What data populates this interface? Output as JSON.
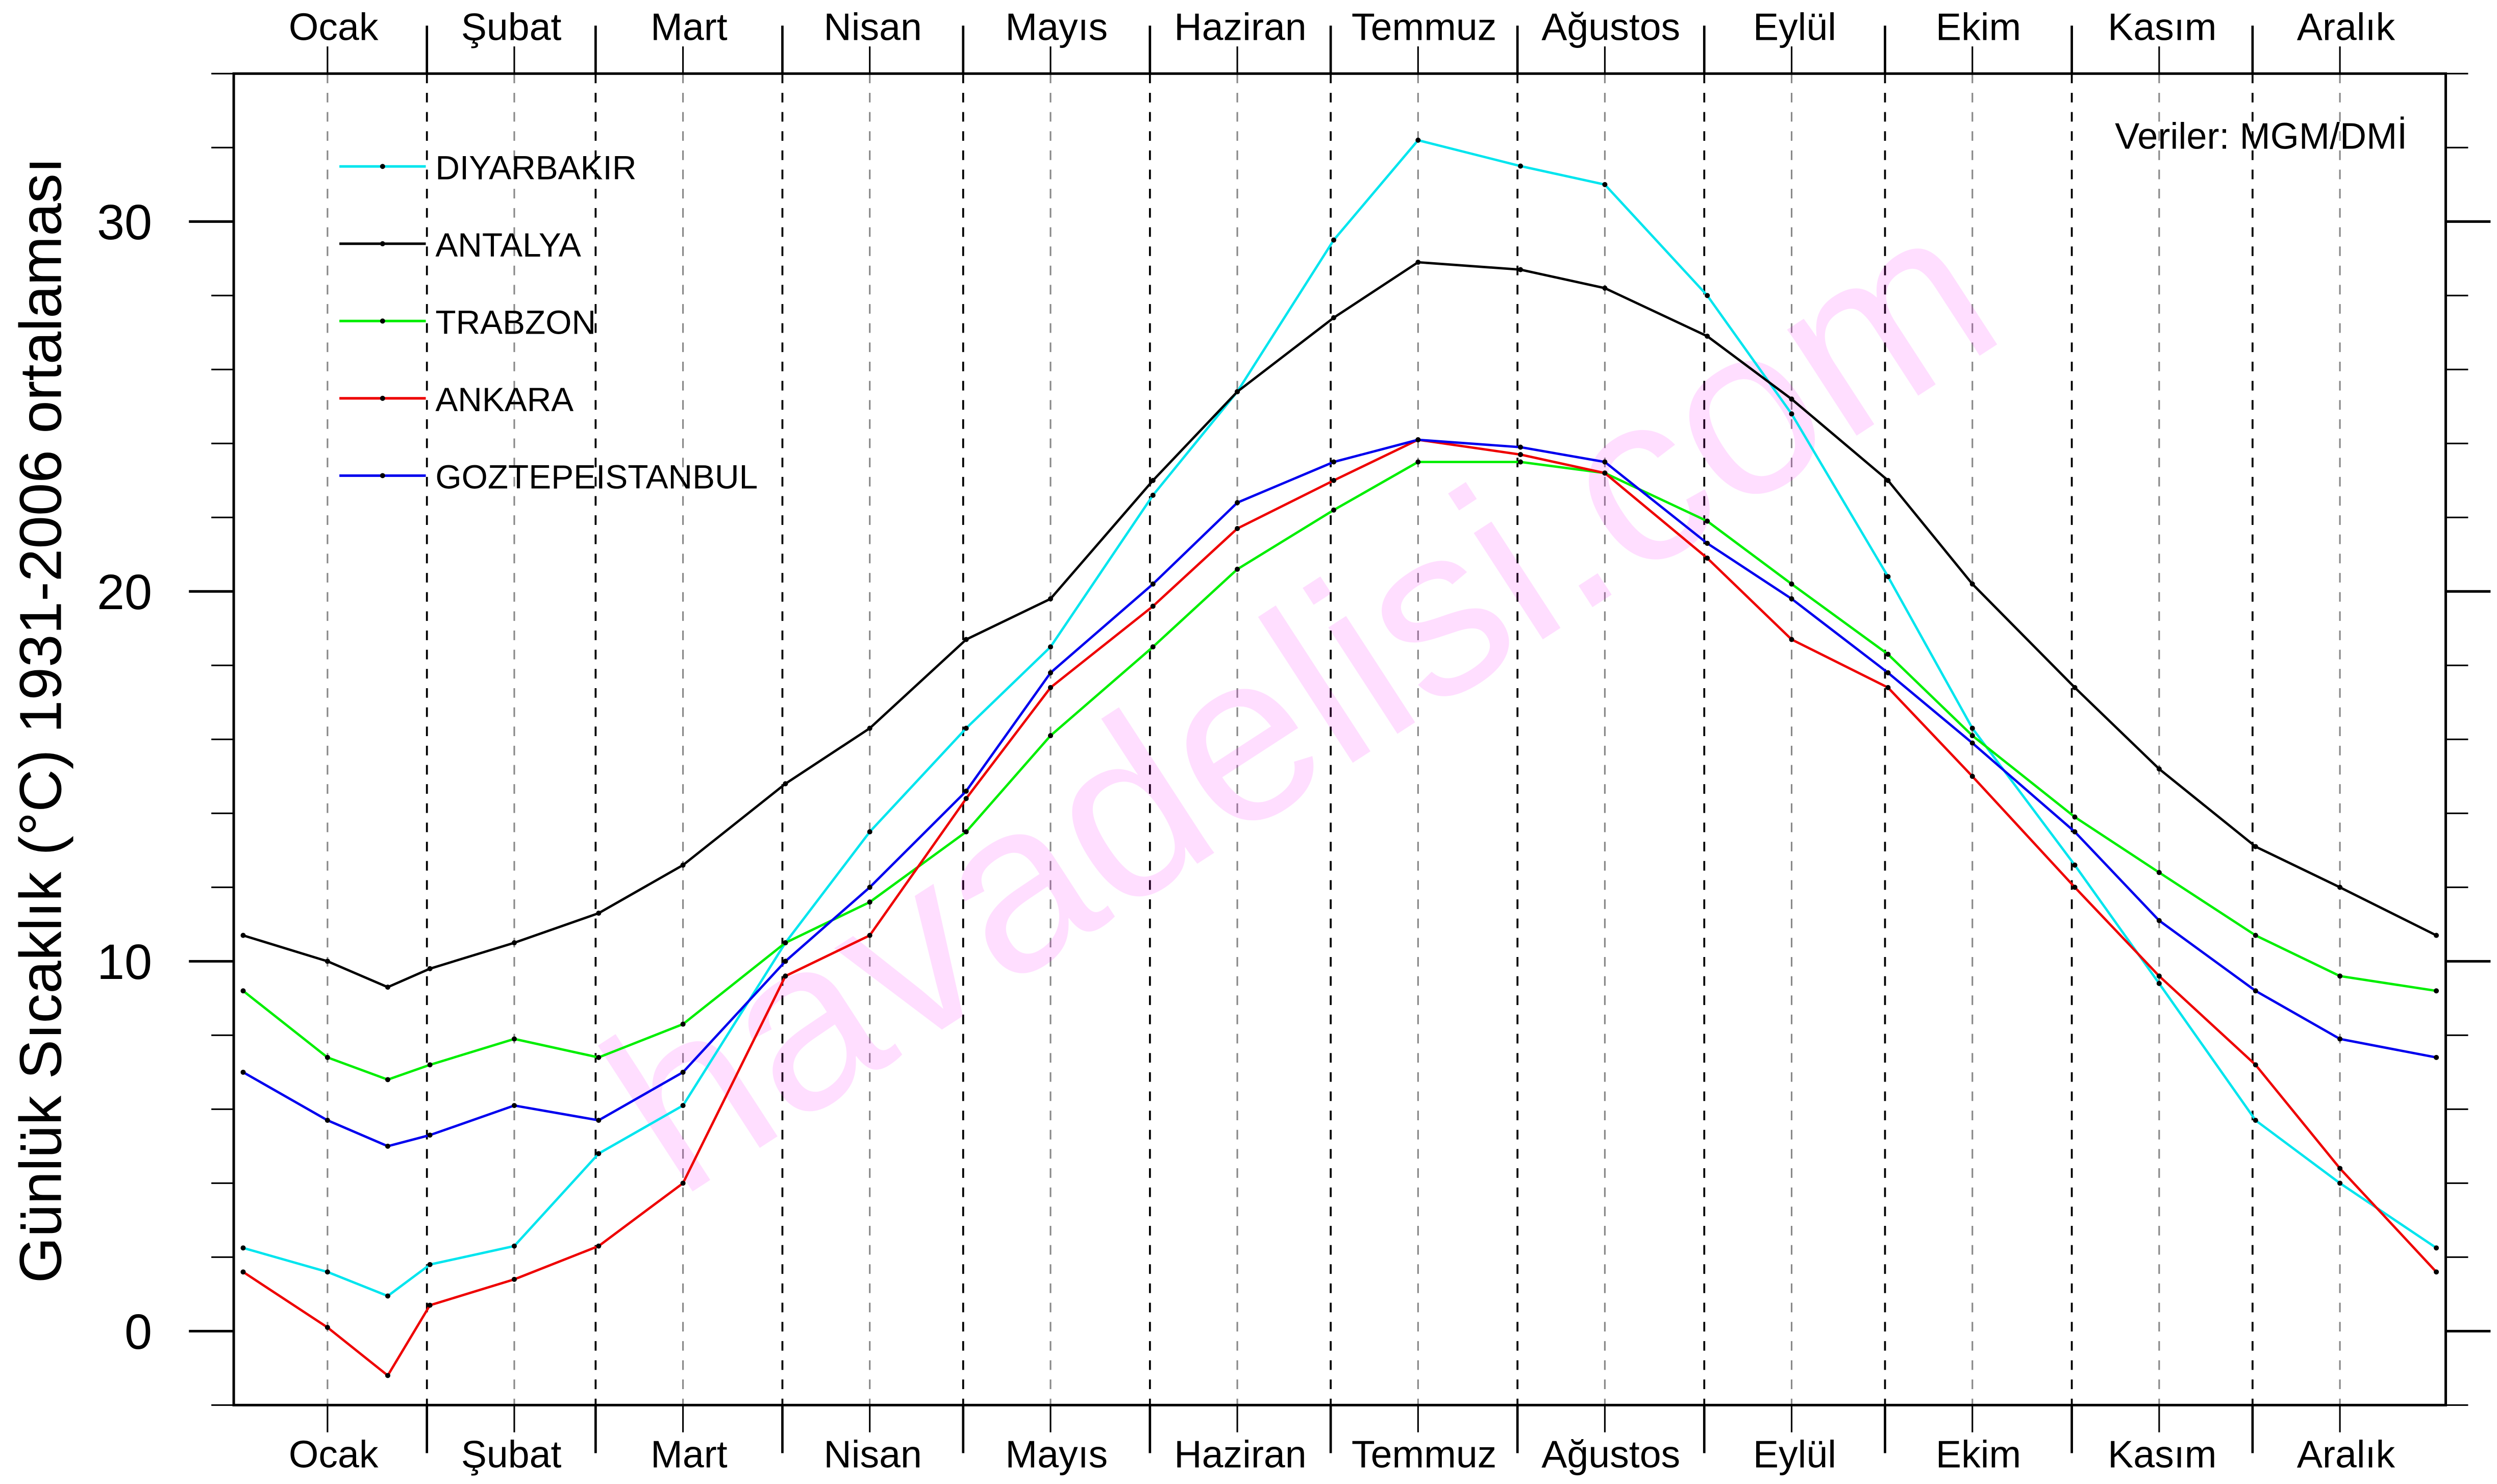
{
  "chart_data": {
    "type": "line",
    "title": "",
    "ylabel": "Günlük Sıcaklık (°C) 1931-2006 ortalaması",
    "xlabel": "",
    "ylim": [
      -2,
      34
    ],
    "yticks": [
      0,
      10,
      20,
      30
    ],
    "ytick_labels": [
      "0",
      "10",
      "20",
      "30"
    ],
    "months": [
      "Ocak",
      "Şubat",
      "Mart",
      "Nisan",
      "Mayıs",
      "Haziran",
      "Temmuz",
      "Ağustos",
      "Eylül",
      "Ekim",
      "Kasım",
      "Aralık"
    ],
    "month_days": [
      31,
      28,
      31,
      30,
      31,
      30,
      31,
      31,
      30,
      31,
      30,
      31
    ],
    "annotation": "Veriler: MGM/DMİ",
    "watermark": "havadelisi.com",
    "legend_position": "top-left",
    "x_day_of_year": [
      1,
      15,
      25,
      32,
      46,
      60,
      74,
      91,
      105,
      121,
      135,
      152,
      166,
      182,
      196,
      213,
      227,
      244,
      258,
      274,
      288,
      305,
      319,
      335,
      349,
      365
    ],
    "series": [
      {
        "name": "DIYARBAKIR",
        "color": "#00e5ee",
        "values": [
          2.25,
          1.6,
          0.95,
          1.8,
          2.3,
          4.8,
          6.1,
          10.5,
          13.5,
          16.3,
          18.5,
          22.6,
          25.4,
          29.5,
          32.2,
          31.5,
          31.0,
          28.0,
          24.8,
          20.4,
          16.3,
          12.6,
          9.4,
          5.7,
          4.0,
          2.25
        ]
      },
      {
        "name": "ANTALYA",
        "color": "#000000",
        "values": [
          10.7,
          10.0,
          9.3,
          9.8,
          10.5,
          11.3,
          12.6,
          14.8,
          16.3,
          18.7,
          19.8,
          23.0,
          25.4,
          27.4,
          28.9,
          28.7,
          28.2,
          26.9,
          25.2,
          23.0,
          20.2,
          17.4,
          15.2,
          13.1,
          12.0,
          10.7
        ]
      },
      {
        "name": "TRABZON",
        "color": "#00ee00",
        "values": [
          9.2,
          7.4,
          6.8,
          7.2,
          7.9,
          7.4,
          8.3,
          10.5,
          11.6,
          13.5,
          16.1,
          18.5,
          20.6,
          22.2,
          23.5,
          23.5,
          23.2,
          21.9,
          20.2,
          18.3,
          16.1,
          13.9,
          12.4,
          10.7,
          9.6,
          9.2
        ]
      },
      {
        "name": "ANKARA",
        "color": "#ee0000",
        "values": [
          1.6,
          0.1,
          -1.2,
          0.7,
          1.4,
          2.3,
          4.0,
          9.6,
          10.7,
          14.4,
          17.4,
          19.6,
          21.7,
          23.0,
          24.1,
          23.7,
          23.2,
          20.9,
          18.7,
          17.4,
          15.0,
          12.0,
          9.6,
          7.2,
          4.4,
          1.6
        ]
      },
      {
        "name": "GOZTEPEISTANBUL",
        "color": "#0000ee",
        "values": [
          7.0,
          5.7,
          5.0,
          5.3,
          6.1,
          5.7,
          7.0,
          10.0,
          12.0,
          14.6,
          17.8,
          20.2,
          22.4,
          23.5,
          24.1,
          23.9,
          23.5,
          21.3,
          19.8,
          17.8,
          15.9,
          13.5,
          11.1,
          9.2,
          7.9,
          7.4
        ]
      }
    ]
  }
}
